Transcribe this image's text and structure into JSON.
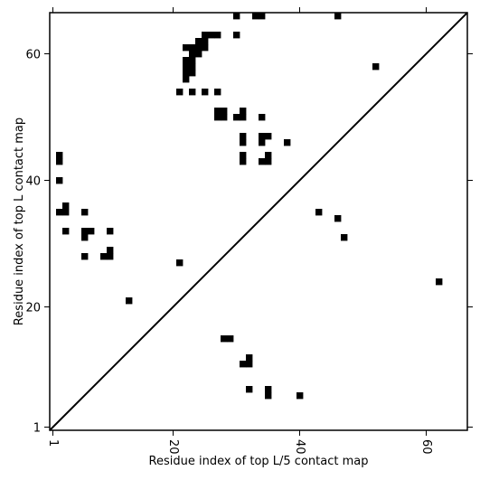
{
  "chart_data": {
    "type": "heatmap",
    "title": "",
    "xlabel": "Residue index of top L/5 contact map",
    "ylabel": "Residue index of top L contact map",
    "xlim": [
      0.5,
      66.5
    ],
    "ylim": [
      0.5,
      66.5
    ],
    "x_ticks": [
      1,
      20,
      40,
      60
    ],
    "y_ticks": [
      1,
      20,
      40,
      60
    ],
    "x_tick_labels": [
      "1",
      "20",
      "40",
      "60"
    ],
    "y_tick_labels": [
      "1",
      "20",
      "40",
      "60"
    ],
    "x_tick_rotation": -90,
    "diagonal": true,
    "grid": false,
    "cell_color": "#000000",
    "background_color": "#ffffff",
    "contacts": [
      [
        30,
        66
      ],
      [
        33,
        66
      ],
      [
        34,
        66
      ],
      [
        46,
        66
      ],
      [
        30,
        63
      ],
      [
        25,
        63
      ],
      [
        26,
        63
      ],
      [
        27,
        63
      ],
      [
        24,
        62
      ],
      [
        25,
        62
      ],
      [
        22,
        61
      ],
      [
        23,
        61
      ],
      [
        24,
        61
      ],
      [
        25,
        61
      ],
      [
        23,
        60
      ],
      [
        24,
        60
      ],
      [
        22,
        59
      ],
      [
        23,
        59
      ],
      [
        22,
        58
      ],
      [
        23,
        58
      ],
      [
        22,
        57
      ],
      [
        23,
        57
      ],
      [
        22,
        56
      ],
      [
        52,
        58
      ],
      [
        21,
        54
      ],
      [
        23,
        54
      ],
      [
        25,
        54
      ],
      [
        27,
        54
      ],
      [
        27,
        51
      ],
      [
        28,
        51
      ],
      [
        31,
        51
      ],
      [
        27,
        50
      ],
      [
        28,
        50
      ],
      [
        30,
        50
      ],
      [
        31,
        50
      ],
      [
        34,
        50
      ],
      [
        31,
        47
      ],
      [
        34,
        47
      ],
      [
        35,
        47
      ],
      [
        31,
        46
      ],
      [
        34,
        46
      ],
      [
        38,
        46
      ],
      [
        31,
        44
      ],
      [
        35,
        44
      ],
      [
        31,
        43
      ],
      [
        34,
        43
      ],
      [
        35,
        43
      ],
      [
        2,
        44
      ],
      [
        2,
        43
      ],
      [
        2,
        40
      ],
      [
        3,
        36
      ],
      [
        2,
        35
      ],
      [
        3,
        35
      ],
      [
        6,
        35
      ],
      [
        43,
        35
      ],
      [
        46,
        34
      ],
      [
        3,
        32
      ],
      [
        6,
        32
      ],
      [
        7,
        32
      ],
      [
        10,
        32
      ],
      [
        6,
        31
      ],
      [
        47,
        31
      ],
      [
        10,
        29
      ],
      [
        6,
        28
      ],
      [
        9,
        28
      ],
      [
        10,
        28
      ],
      [
        21,
        27
      ],
      [
        62,
        24
      ],
      [
        13,
        21
      ],
      [
        28,
        15
      ],
      [
        29,
        15
      ],
      [
        32,
        12
      ],
      [
        31,
        11
      ],
      [
        32,
        11
      ],
      [
        32,
        7
      ],
      [
        35,
        7
      ],
      [
        35,
        6
      ],
      [
        40,
        6
      ]
    ]
  }
}
